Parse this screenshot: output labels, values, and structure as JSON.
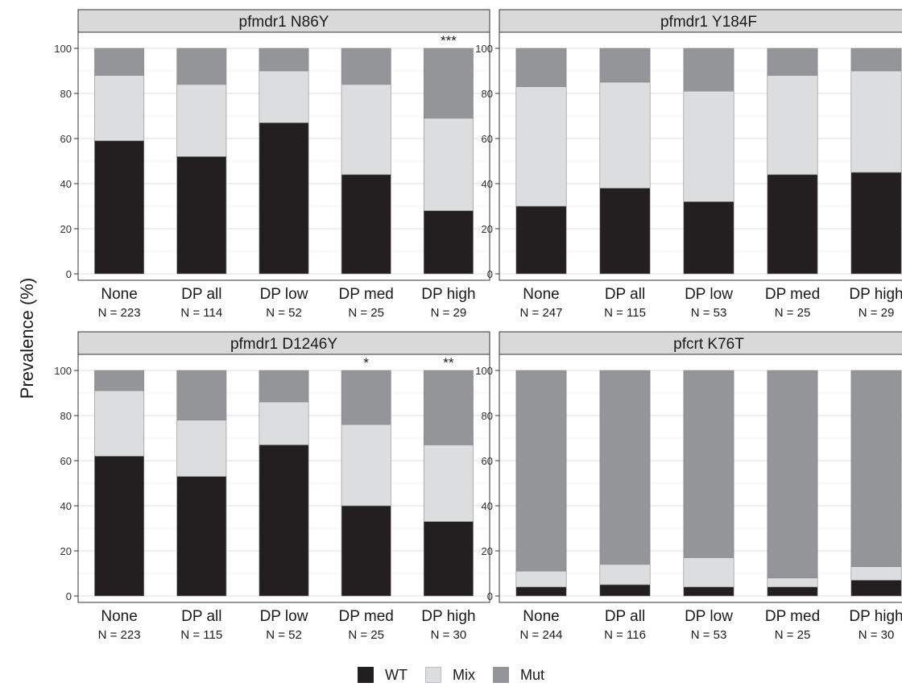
{
  "y_axis_label": "Prevalence (%)",
  "legend": [
    {
      "key": "WT",
      "label": "WT",
      "color": "#231f20"
    },
    {
      "key": "Mix",
      "label": "Mix",
      "color": "#dcdddf"
    },
    {
      "key": "Mut",
      "label": "Mut",
      "color": "#939598"
    }
  ],
  "chart_data": [
    {
      "type": "bar",
      "stacked": true,
      "title": "pfmdr1 N86Y",
      "categories": [
        "None",
        "DP all",
        "DP low",
        "DP med",
        "DP high"
      ],
      "counts": [
        "N = 223",
        "N = 114",
        "N = 52",
        "N = 25",
        "N = 29"
      ],
      "significance": [
        "",
        "",
        "",
        "",
        "***"
      ],
      "series": [
        {
          "name": "WT",
          "values": [
            59,
            52,
            67,
            44,
            28
          ]
        },
        {
          "name": "Mix",
          "values": [
            29,
            32,
            23,
            40,
            41
          ]
        },
        {
          "name": "Mut",
          "values": [
            12,
            16,
            10,
            16,
            31
          ]
        }
      ],
      "ylim": [
        0,
        100
      ],
      "yticks": [
        0,
        20,
        40,
        60,
        80,
        100
      ],
      "grid": true
    },
    {
      "type": "bar",
      "stacked": true,
      "title": "pfmdr1 Y184F",
      "categories": [
        "None",
        "DP all",
        "DP low",
        "DP med",
        "DP high"
      ],
      "counts": [
        "N = 247",
        "N = 115",
        "N = 53",
        "N = 25",
        "N = 29"
      ],
      "significance": [
        "",
        "",
        "",
        "",
        ""
      ],
      "series": [
        {
          "name": "WT",
          "values": [
            30,
            38,
            32,
            44,
            45
          ]
        },
        {
          "name": "Mix",
          "values": [
            53,
            47,
            49,
            44,
            45
          ]
        },
        {
          "name": "Mut",
          "values": [
            17,
            15,
            19,
            12,
            10
          ]
        }
      ],
      "ylim": [
        0,
        100
      ],
      "yticks": [
        0,
        20,
        40,
        60,
        80,
        100
      ],
      "grid": true
    },
    {
      "type": "bar",
      "stacked": true,
      "title": "pfmdr1 D1246Y",
      "categories": [
        "None",
        "DP all",
        "DP low",
        "DP med",
        "DP high"
      ],
      "counts": [
        "N = 223",
        "N = 115",
        "N = 52",
        "N = 25",
        "N = 30"
      ],
      "significance": [
        "",
        "",
        "",
        "*",
        "**"
      ],
      "series": [
        {
          "name": "WT",
          "values": [
            62,
            53,
            67,
            40,
            33
          ]
        },
        {
          "name": "Mix",
          "values": [
            29,
            25,
            19,
            36,
            34
          ]
        },
        {
          "name": "Mut",
          "values": [
            9,
            22,
            14,
            24,
            33
          ]
        }
      ],
      "ylim": [
        0,
        100
      ],
      "yticks": [
        0,
        20,
        40,
        60,
        80,
        100
      ],
      "grid": true
    },
    {
      "type": "bar",
      "stacked": true,
      "title": "pfcrt K76T",
      "categories": [
        "None",
        "DP all",
        "DP low",
        "DP med",
        "DP high"
      ],
      "counts": [
        "N = 244",
        "N = 116",
        "N = 53",
        "N = 25",
        "N = 30"
      ],
      "significance": [
        "",
        "",
        "",
        "",
        ""
      ],
      "series": [
        {
          "name": "WT",
          "values": [
            4,
            5,
            4,
            4,
            7
          ]
        },
        {
          "name": "Mix",
          "values": [
            7,
            9,
            13,
            4,
            6
          ]
        },
        {
          "name": "Mut",
          "values": [
            89,
            86,
            83,
            92,
            87
          ]
        }
      ],
      "ylim": [
        0,
        100
      ],
      "yticks": [
        0,
        20,
        40,
        60,
        80,
        100
      ],
      "grid": true
    }
  ]
}
